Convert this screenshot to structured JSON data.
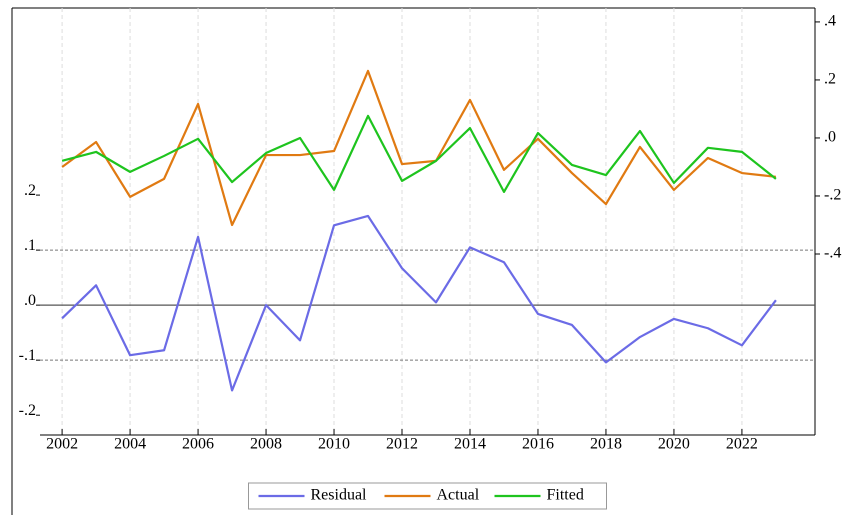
{
  "chart_data": {
    "type": "line",
    "x": [
      2002,
      2003,
      2004,
      2005,
      2006,
      2007,
      2008,
      2009,
      2010,
      2011,
      2012,
      2013,
      2014,
      2015,
      2016,
      2017,
      2018,
      2019,
      2020,
      2021,
      2022,
      2023
    ],
    "series": [
      {
        "name": "Residual",
        "color": "#6b6be6",
        "axis": "y",
        "values": [
          -0.024,
          0.036,
          -0.091,
          -0.082,
          0.124,
          -0.155,
          0.0,
          -0.064,
          0.145,
          0.162,
          0.067,
          0.005,
          0.105,
          0.078,
          -0.016,
          -0.036,
          -0.104,
          -0.058,
          -0.025,
          -0.042,
          -0.073,
          0.009
        ]
      },
      {
        "name": "Actual",
        "color": "#e07a12",
        "axis": "y2",
        "values": [
          -0.1,
          -0.014,
          -0.203,
          -0.141,
          0.117,
          -0.3,
          -0.059,
          -0.059,
          -0.045,
          0.231,
          -0.09,
          -0.079,
          0.131,
          -0.11,
          -0.003,
          -0.121,
          -0.228,
          -0.031,
          -0.179,
          -0.069,
          -0.121,
          -0.134
        ]
      },
      {
        "name": "Fitted",
        "color": "#1ec41e",
        "axis": "y2",
        "values": [
          -0.079,
          -0.048,
          -0.117,
          -0.062,
          -0.003,
          -0.152,
          -0.052,
          0.0,
          -0.179,
          0.076,
          -0.148,
          -0.079,
          0.034,
          -0.186,
          0.017,
          -0.093,
          -0.128,
          0.024,
          -0.155,
          -0.034,
          -0.048,
          -0.141
        ]
      }
    ],
    "xlim": [
      2001.35,
      2024.15
    ],
    "xticks": [
      2002,
      2004,
      2006,
      2008,
      2010,
      2012,
      2014,
      2016,
      2018,
      2020,
      2022
    ],
    "ylim": [
      -0.236,
      0.54
    ],
    "yticks": [
      {
        "value": 0.2,
        "label": ".2"
      },
      {
        "value": 0.1,
        "label": ".1"
      },
      {
        "value": 0.0,
        "label": ".0"
      },
      {
        "value": -0.1,
        "label": "-.1"
      },
      {
        "value": -0.2,
        "label": "-.2"
      }
    ],
    "y2lim": [
      -1.024,
      0.448
    ],
    "y2ticks": [
      {
        "value": 0.4,
        "label": ".4"
      },
      {
        "value": 0.2,
        "label": ".2"
      },
      {
        "value": 0.0,
        "label": ".0"
      },
      {
        "value": -0.2,
        "label": "-.2"
      },
      {
        "value": -0.4,
        "label": "-.4"
      }
    ],
    "hlines": [
      {
        "value": 0.1,
        "dashed": true
      },
      {
        "value": 0.0,
        "dashed": false
      },
      {
        "value": -0.1,
        "dashed": true
      }
    ],
    "grid": true,
    "legend": "bottom"
  }
}
